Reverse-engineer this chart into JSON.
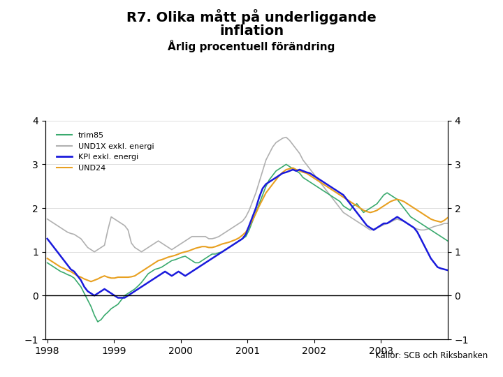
{
  "title1": "R7. Olika mått på underliggande",
  "title2": "inflation",
  "subtitle": "Årlig procentuell förändring",
  "source": "Källor: SCB och Riksbanken",
  "ylim": [
    -1,
    4
  ],
  "yticks": [
    -1,
    0,
    1,
    2,
    3,
    4
  ],
  "colors": {
    "trim85": "#3aaa6e",
    "UND1X": "#b0b0b0",
    "KPI": "#1a1adc",
    "UND24": "#e8a020"
  },
  "legend_labels": [
    "trim85",
    "UND1X exkl. energi",
    "KPI exkl. energi",
    "UND24"
  ],
  "background_color": "#ffffff",
  "bar_color": "#1a3a9e",
  "trim85": [
    0.75,
    0.7,
    0.65,
    0.6,
    0.55,
    0.52,
    0.48,
    0.45,
    0.4,
    0.3,
    0.2,
    0.05,
    -0.1,
    -0.25,
    -0.45,
    -0.6,
    -0.55,
    -0.45,
    -0.38,
    -0.3,
    -0.25,
    -0.2,
    -0.1,
    0.0,
    0.05,
    0.1,
    0.15,
    0.22,
    0.3,
    0.4,
    0.5,
    0.55,
    0.6,
    0.62,
    0.65,
    0.7,
    0.75,
    0.8,
    0.82,
    0.85,
    0.88,
    0.9,
    0.85,
    0.8,
    0.75,
    0.75,
    0.8,
    0.85,
    0.9,
    0.95,
    0.95,
    0.98,
    1.0,
    1.05,
    1.1,
    1.15,
    1.2,
    1.25,
    1.3,
    1.35,
    1.5,
    1.7,
    1.9,
    2.1,
    2.3,
    2.5,
    2.65,
    2.75,
    2.85,
    2.9,
    2.95,
    3.0,
    2.95,
    2.9,
    2.85,
    2.8,
    2.7,
    2.65,
    2.6,
    2.55,
    2.5,
    2.45,
    2.4,
    2.35,
    2.3,
    2.25,
    2.2,
    2.15,
    2.05,
    2.0,
    1.95,
    2.05,
    2.1,
    2.0,
    1.9,
    1.95,
    2.0,
    2.05,
    2.1,
    2.2,
    2.3,
    2.35,
    2.3,
    2.25,
    2.2,
    2.1,
    2.0,
    1.9,
    1.8,
    1.75,
    1.7,
    1.65,
    1.6,
    1.55,
    1.5,
    1.45,
    1.4,
    1.35,
    1.3,
    1.25
  ],
  "UND1X": [
    1.75,
    1.7,
    1.65,
    1.6,
    1.55,
    1.5,
    1.45,
    1.42,
    1.4,
    1.35,
    1.3,
    1.2,
    1.1,
    1.05,
    1.0,
    1.05,
    1.1,
    1.15,
    1.5,
    1.8,
    1.75,
    1.7,
    1.65,
    1.6,
    1.5,
    1.2,
    1.1,
    1.05,
    1.0,
    1.05,
    1.1,
    1.15,
    1.2,
    1.25,
    1.2,
    1.15,
    1.1,
    1.05,
    1.1,
    1.15,
    1.2,
    1.25,
    1.3,
    1.35,
    1.35,
    1.35,
    1.35,
    1.35,
    1.3,
    1.3,
    1.32,
    1.35,
    1.4,
    1.45,
    1.5,
    1.55,
    1.6,
    1.65,
    1.7,
    1.8,
    1.95,
    2.15,
    2.35,
    2.6,
    2.85,
    3.1,
    3.25,
    3.4,
    3.5,
    3.55,
    3.6,
    3.62,
    3.55,
    3.45,
    3.35,
    3.25,
    3.1,
    3.0,
    2.9,
    2.8,
    2.7,
    2.6,
    2.5,
    2.4,
    2.3,
    2.2,
    2.1,
    2.0,
    1.9,
    1.85,
    1.8,
    1.75,
    1.7,
    1.65,
    1.6,
    1.55,
    1.5,
    1.52,
    1.55,
    1.58,
    1.62,
    1.65,
    1.68,
    1.72,
    1.75,
    1.72,
    1.7,
    1.65,
    1.6,
    1.55,
    1.52,
    1.5,
    1.5,
    1.52,
    1.55,
    1.58,
    1.6,
    1.62,
    1.65,
    1.65
  ],
  "KPI": [
    1.3,
    1.2,
    1.1,
    1.0,
    0.9,
    0.8,
    0.7,
    0.6,
    0.55,
    0.45,
    0.35,
    0.2,
    0.1,
    0.05,
    0.0,
    0.05,
    0.1,
    0.15,
    0.1,
    0.05,
    0.0,
    -0.05,
    -0.05,
    -0.05,
    0.0,
    0.05,
    0.1,
    0.15,
    0.2,
    0.25,
    0.3,
    0.35,
    0.4,
    0.45,
    0.5,
    0.55,
    0.5,
    0.45,
    0.5,
    0.55,
    0.5,
    0.45,
    0.5,
    0.55,
    0.6,
    0.65,
    0.7,
    0.75,
    0.8,
    0.85,
    0.9,
    0.95,
    1.0,
    1.05,
    1.1,
    1.15,
    1.2,
    1.25,
    1.3,
    1.4,
    1.6,
    1.8,
    2.0,
    2.25,
    2.45,
    2.55,
    2.6,
    2.65,
    2.7,
    2.75,
    2.8,
    2.82,
    2.85,
    2.88,
    2.85,
    2.88,
    2.85,
    2.82,
    2.8,
    2.75,
    2.7,
    2.65,
    2.6,
    2.55,
    2.5,
    2.45,
    2.4,
    2.35,
    2.3,
    2.2,
    2.1,
    2.0,
    1.9,
    1.8,
    1.7,
    1.6,
    1.55,
    1.5,
    1.55,
    1.6,
    1.65,
    1.65,
    1.7,
    1.75,
    1.8,
    1.75,
    1.7,
    1.65,
    1.6,
    1.55,
    1.45,
    1.3,
    1.15,
    1.0,
    0.85,
    0.75,
    0.65,
    0.62,
    0.6,
    0.58
  ],
  "UND24": [
    0.85,
    0.8,
    0.75,
    0.7,
    0.65,
    0.62,
    0.58,
    0.55,
    0.5,
    0.45,
    0.42,
    0.38,
    0.35,
    0.32,
    0.35,
    0.38,
    0.42,
    0.45,
    0.42,
    0.4,
    0.4,
    0.42,
    0.42,
    0.42,
    0.42,
    0.43,
    0.45,
    0.5,
    0.55,
    0.6,
    0.65,
    0.7,
    0.75,
    0.8,
    0.82,
    0.85,
    0.88,
    0.9,
    0.92,
    0.95,
    0.98,
    1.0,
    1.02,
    1.05,
    1.08,
    1.1,
    1.12,
    1.12,
    1.1,
    1.1,
    1.12,
    1.15,
    1.18,
    1.2,
    1.22,
    1.25,
    1.28,
    1.32,
    1.38,
    1.45,
    1.58,
    1.72,
    1.88,
    2.05,
    2.2,
    2.35,
    2.45,
    2.55,
    2.65,
    2.75,
    2.82,
    2.88,
    2.9,
    2.92,
    2.88,
    2.85,
    2.82,
    2.8,
    2.75,
    2.7,
    2.65,
    2.6,
    2.55,
    2.5,
    2.45,
    2.4,
    2.35,
    2.3,
    2.25,
    2.2,
    2.15,
    2.1,
    2.05,
    2.0,
    1.95,
    1.92,
    1.9,
    1.92,
    1.95,
    2.0,
    2.05,
    2.1,
    2.15,
    2.18,
    2.2,
    2.18,
    2.15,
    2.1,
    2.05,
    2.0,
    1.95,
    1.9,
    1.85,
    1.8,
    1.75,
    1.72,
    1.7,
    1.68,
    1.72,
    1.78
  ]
}
